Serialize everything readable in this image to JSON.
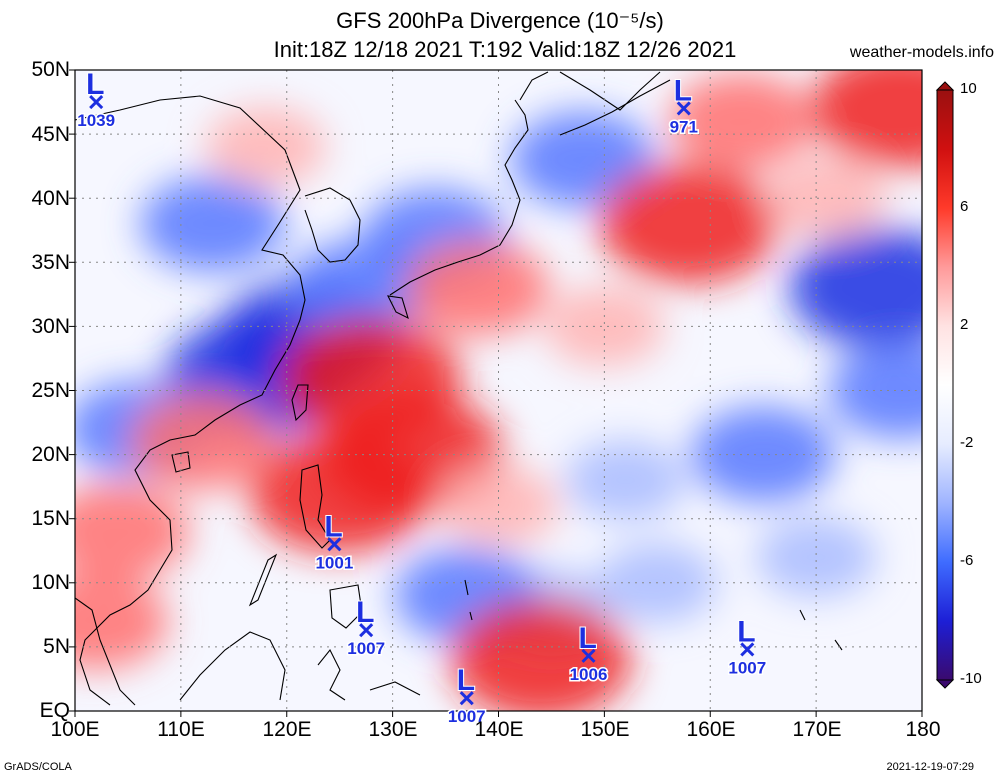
{
  "header": {
    "title_line1": "GFS 200hPa Divergence (10⁻⁵/s)",
    "title_line2": "Init:18Z 12/18 2021 T:192 Valid:18Z 12/26 2021",
    "site": "weather-models.info"
  },
  "footer": {
    "credit": "GrADS/COLA",
    "timestamp": "2021-12-19-07:29"
  },
  "axes": {
    "lat_labels": [
      "50N",
      "45N",
      "40N",
      "35N",
      "30N",
      "25N",
      "20N",
      "15N",
      "10N",
      "5N",
      "EQ"
    ],
    "lon_labels": [
      "100E",
      "110E",
      "120E",
      "130E",
      "140E",
      "150E",
      "160E",
      "170E",
      "180"
    ]
  },
  "colorbar": {
    "ticks": [
      "10",
      "6",
      "2",
      "-2",
      "-6",
      "-10"
    ],
    "colors": [
      "#3a0a6e",
      "#1d1fd6",
      "#3f6cff",
      "#9fb4ff",
      "#e6ecff",
      "#ffffff",
      "#ffe2e2",
      "#ff9a9a",
      "#ff3a2a",
      "#d01010",
      "#9a1010"
    ]
  },
  "pressure_centers": [
    {
      "type": "L",
      "value": "1039",
      "lon": 102,
      "lat": 47.5
    },
    {
      "type": "L",
      "value": "971",
      "lon": 157.5,
      "lat": 47
    },
    {
      "type": "L",
      "value": "1001",
      "lon": 124.5,
      "lat": 13
    },
    {
      "type": "L",
      "value": "1007",
      "lon": 127.5,
      "lat": 6.3
    },
    {
      "type": "L",
      "value": "1007",
      "lon": 137,
      "lat": 1
    },
    {
      "type": "L",
      "value": "1006",
      "lon": 148.5,
      "lat": 4.3
    },
    {
      "type": "L",
      "value": "1007",
      "lon": 163.5,
      "lat": 4.8
    }
  ],
  "field_features": [
    {
      "kind": "convergence",
      "lon": 122,
      "lat": 29,
      "strength": "strong"
    },
    {
      "kind": "convergence",
      "lon": 117,
      "lat": 26,
      "strength": "strong"
    },
    {
      "kind": "convergence",
      "lon": 106,
      "lat": 22,
      "strength": "moderate"
    },
    {
      "kind": "convergence",
      "lon": 113,
      "lat": 38,
      "strength": "moderate"
    },
    {
      "kind": "convergence",
      "lon": 127,
      "lat": 33,
      "strength": "moderate"
    },
    {
      "kind": "convergence",
      "lon": 134,
      "lat": 37,
      "strength": "moderate"
    },
    {
      "kind": "convergence",
      "lon": 176,
      "lat": 33,
      "strength": "strong"
    },
    {
      "kind": "convergence",
      "lon": 178,
      "lat": 25,
      "strength": "moderate"
    },
    {
      "kind": "convergence",
      "lon": 165,
      "lat": 20,
      "strength": "moderate"
    },
    {
      "kind": "convergence",
      "lon": 152,
      "lat": 18,
      "strength": "weak"
    },
    {
      "kind": "convergence",
      "lon": 148,
      "lat": 43,
      "strength": "moderate"
    },
    {
      "kind": "convergence",
      "lon": 155,
      "lat": 10,
      "strength": "weak"
    },
    {
      "kind": "convergence",
      "lon": 145,
      "lat": 8,
      "strength": "weak"
    },
    {
      "kind": "convergence",
      "lon": 137,
      "lat": 9,
      "strength": "moderate"
    },
    {
      "kind": "convergence",
      "lon": 170,
      "lat": 12,
      "strength": "weak"
    },
    {
      "kind": "divergence",
      "lon": 128,
      "lat": 26,
      "strength": "strong"
    },
    {
      "kind": "divergence",
      "lon": 125,
      "lat": 17,
      "strength": "strong"
    },
    {
      "kind": "divergence",
      "lon": 132,
      "lat": 20,
      "strength": "strong"
    },
    {
      "kind": "divergence",
      "lon": 112,
      "lat": 21,
      "strength": "moderate"
    },
    {
      "kind": "divergence",
      "lon": 104,
      "lat": 14,
      "strength": "moderate"
    },
    {
      "kind": "divergence",
      "lon": 138,
      "lat": 33,
      "strength": "moderate"
    },
    {
      "kind": "divergence",
      "lon": 158,
      "lat": 38,
      "strength": "strong"
    },
    {
      "kind": "divergence",
      "lon": 163,
      "lat": 46,
      "strength": "moderate"
    },
    {
      "kind": "divergence",
      "lon": 178,
      "lat": 47,
      "strength": "strong"
    },
    {
      "kind": "divergence",
      "lon": 144,
      "lat": 4,
      "strength": "strong"
    },
    {
      "kind": "divergence",
      "lon": 140,
      "lat": 16,
      "strength": "weak"
    },
    {
      "kind": "divergence",
      "lon": 102,
      "lat": 7,
      "strength": "moderate"
    },
    {
      "kind": "divergence",
      "lon": 118,
      "lat": 44,
      "strength": "weak"
    },
    {
      "kind": "divergence",
      "lon": 150,
      "lat": 30,
      "strength": "weak"
    },
    {
      "kind": "divergence",
      "lon": 171,
      "lat": 40,
      "strength": "weak"
    }
  ]
}
